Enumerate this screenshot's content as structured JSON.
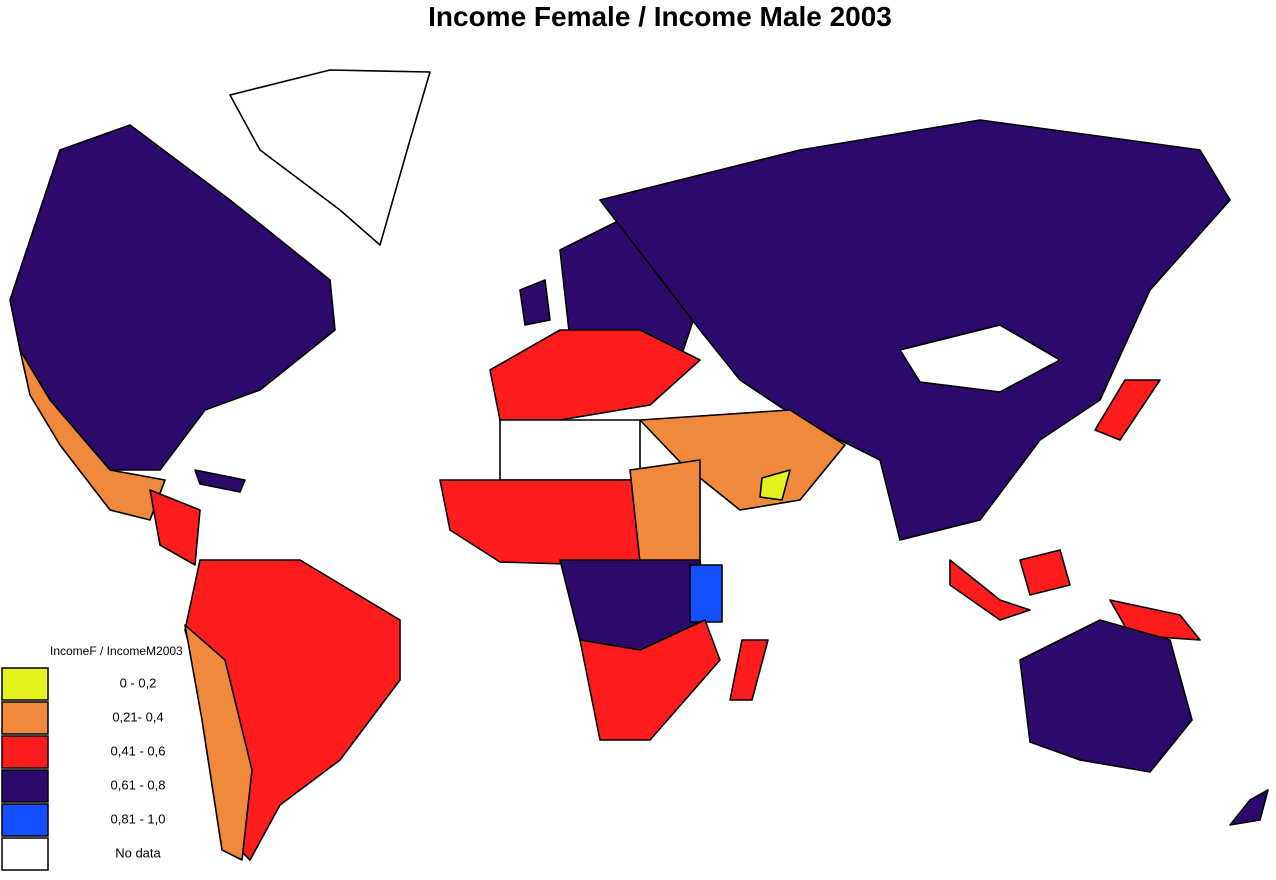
{
  "title": "Income Female / Income Male 2003",
  "legend": {
    "title": "IncomeF / IncomeM2003",
    "items": [
      {
        "label": "0 - 0,2",
        "color": "#e4f21e"
      },
      {
        "label": "0,21- 0,4",
        "color": "#f0893c"
      },
      {
        "label": "0,41 - 0,6",
        "color": "#ff1c1c"
      },
      {
        "label": "0,61 - 0,8",
        "color": "#2c0a6c"
      },
      {
        "label": "0,81 - 1,0",
        "color": "#1450ff"
      },
      {
        "label": "No data",
        "color": "#ffffff"
      }
    ]
  }
}
